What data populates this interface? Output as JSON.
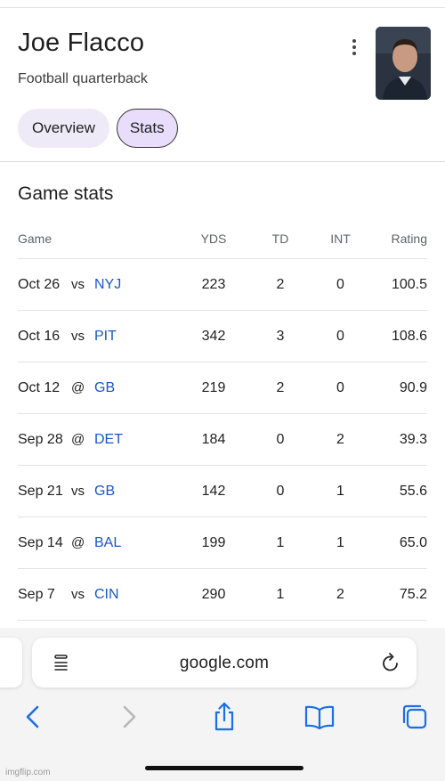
{
  "header": {
    "name": "Joe Flacco",
    "subtitle": "Football quarterback"
  },
  "tabs": [
    {
      "label": "Overview",
      "active": false
    },
    {
      "label": "Stats",
      "active": true
    }
  ],
  "game_stats": {
    "title": "Game stats",
    "columns": [
      "Game",
      "YDS",
      "TD",
      "INT",
      "Rating"
    ],
    "rows": [
      {
        "date": "Oct 26",
        "loc": "vs",
        "opp": "NYJ",
        "yds": "223",
        "td": "2",
        "int": "0",
        "rating": "100.5"
      },
      {
        "date": "Oct 16",
        "loc": "vs",
        "opp": "PIT",
        "yds": "342",
        "td": "3",
        "int": "0",
        "rating": "108.6"
      },
      {
        "date": "Oct 12",
        "loc": "@",
        "opp": "GB",
        "yds": "219",
        "td": "2",
        "int": "0",
        "rating": "90.9"
      },
      {
        "date": "Sep 28",
        "loc": "@",
        "opp": "DET",
        "yds": "184",
        "td": "0",
        "int": "2",
        "rating": "39.3"
      },
      {
        "date": "Sep 21",
        "loc": "vs",
        "opp": "GB",
        "yds": "142",
        "td": "0",
        "int": "1",
        "rating": "55.6"
      },
      {
        "date": "Sep 14",
        "loc": "@",
        "opp": "BAL",
        "yds": "199",
        "td": "1",
        "int": "1",
        "rating": "65.0"
      },
      {
        "date": "Sep 7",
        "loc": "vs",
        "opp": "CIN",
        "yds": "290",
        "td": "1",
        "int": "2",
        "rating": "75.2"
      }
    ]
  },
  "browser": {
    "url": "google.com"
  },
  "watermark": "imgflip.com",
  "colors": {
    "link": "#1a57c4",
    "chip": "#efeaf8",
    "chip_active": "#e8ddfb",
    "toolbar_icon": "#1a6ee8"
  },
  "icons": [
    "more-vert-icon",
    "reader-icon",
    "reload-icon",
    "back-icon",
    "forward-icon",
    "share-icon",
    "bookmarks-icon",
    "tabs-icon"
  ]
}
